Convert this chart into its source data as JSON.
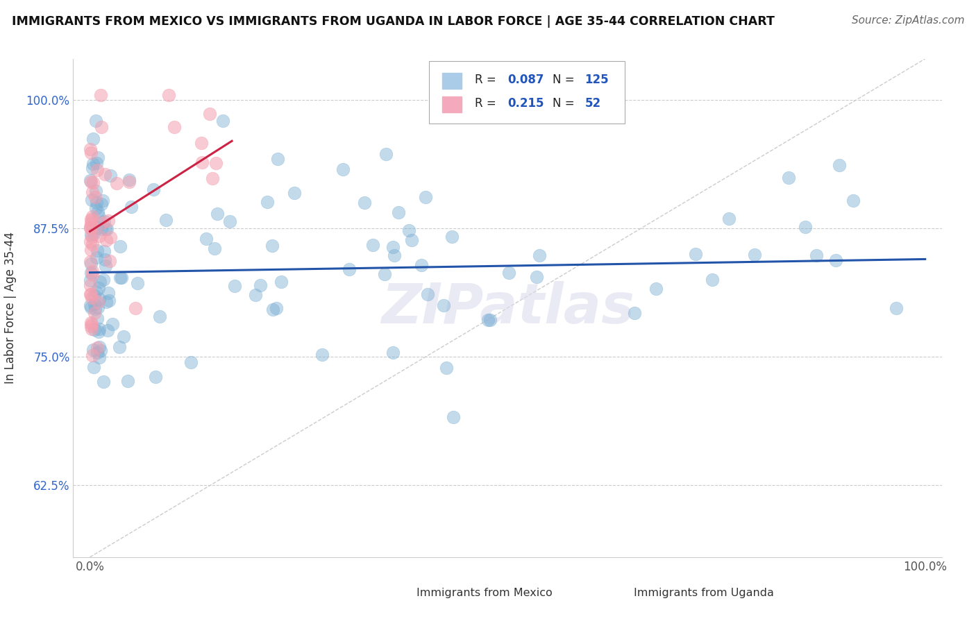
{
  "title": "IMMIGRANTS FROM MEXICO VS IMMIGRANTS FROM UGANDA IN LABOR FORCE | AGE 35-44 CORRELATION CHART",
  "source": "Source: ZipAtlas.com",
  "ylabel": "In Labor Force | Age 35-44",
  "xlim": [
    -0.02,
    1.02
  ],
  "ylim": [
    0.555,
    1.04
  ],
  "yticks": [
    0.625,
    0.75,
    0.875,
    1.0
  ],
  "ytick_labels": [
    "62.5%",
    "75.0%",
    "87.5%",
    "100.0%"
  ],
  "xtick_labels": [
    "0.0%",
    "100.0%"
  ],
  "legend_r_mexico": "0.087",
  "legend_n_mexico": "125",
  "legend_r_uganda": "0.215",
  "legend_n_uganda": "52",
  "color_mexico": "#7BAFD4",
  "color_uganda": "#F4A0B0",
  "color_trend_mexico": "#2255AA",
  "color_trend_uganda": "#CC2244",
  "watermark": "ZIPatlas",
  "mexico_trend_x0": 0.0,
  "mexico_trend_y0": 0.832,
  "mexico_trend_x1": 1.0,
  "mexico_trend_y1": 0.845,
  "uganda_trend_x0": 0.0,
  "uganda_trend_y0": 0.872,
  "uganda_trend_x1": 0.17,
  "uganda_trend_y1": 0.96
}
